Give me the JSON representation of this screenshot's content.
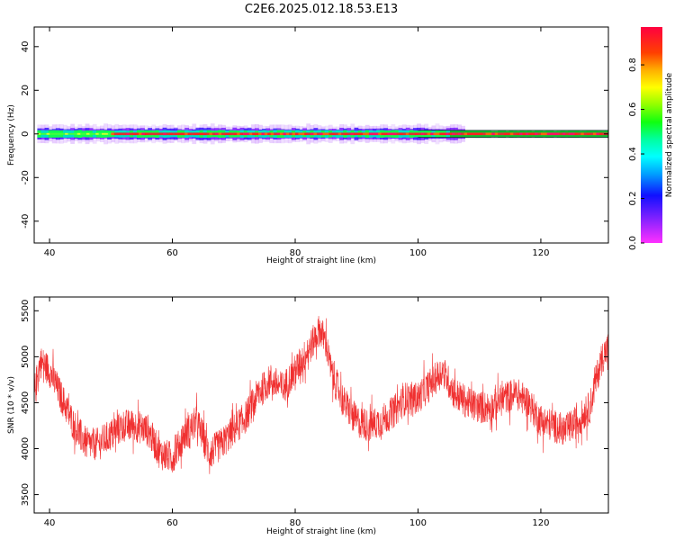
{
  "chart_data": [
    {
      "type": "heatmap",
      "title": "C2E6.2025.012.18.53.E13",
      "xlabel": "Height of straight line (km)",
      "ylabel": "Frequency (Hz)",
      "xlim": [
        37.5,
        131
      ],
      "ylim": [
        -50,
        49
      ],
      "xticks": [
        40,
        60,
        80,
        100,
        120
      ],
      "yticks": [
        -40,
        -20,
        0,
        20,
        40
      ],
      "grid": false,
      "colorbar": {
        "label": "Normalized spectral amplitude",
        "range": [
          0,
          0.97
        ],
        "ticks": [
          0.0,
          0.2,
          0.4,
          0.6,
          0.8
        ],
        "colormap": "hsv-rainbow"
      },
      "description_bands": [
        {
          "x_range": [
            38,
            107
          ],
          "freq_halfwidth": 4,
          "amplitude": 0.2
        },
        {
          "x_range": [
            38,
            131
          ],
          "freq_halfwidth": 1,
          "amplitude": 0.6
        },
        {
          "x_range": [
            50,
            131
          ],
          "freq_halfwidth": 0.6,
          "amplitude": 0.95
        }
      ]
    },
    {
      "type": "line",
      "xlabel": "Height of straight line (km)",
      "ylabel": "SNR (10 * v/v)",
      "xlim": [
        37.5,
        131
      ],
      "ylim": [
        3300,
        5650
      ],
      "xticks": [
        40,
        60,
        80,
        100,
        120
      ],
      "yticks": [
        3500,
        4000,
        4500,
        5000,
        5500
      ],
      "grid": false,
      "series": [
        {
          "color": "#f03030",
          "trend_x": [
            37.5,
            38.5,
            40,
            42,
            44,
            46,
            48,
            50,
            52,
            54,
            56,
            58,
            60,
            62,
            64,
            66,
            68,
            70,
            72,
            74,
            76,
            78,
            80,
            82,
            84,
            85,
            86,
            88,
            90,
            92,
            94,
            96,
            98,
            100,
            102,
            104,
            106,
            108,
            110,
            112,
            114,
            116,
            118,
            120,
            122,
            124,
            126,
            128,
            129,
            130,
            131
          ],
          "trend_y": [
            4600,
            4950,
            4850,
            4550,
            4250,
            4050,
            4050,
            4150,
            4250,
            4250,
            4200,
            3950,
            3900,
            4150,
            4300,
            3950,
            4050,
            4200,
            4350,
            4600,
            4750,
            4650,
            4850,
            5050,
            5300,
            5150,
            4800,
            4500,
            4300,
            4250,
            4300,
            4400,
            4550,
            4550,
            4700,
            4850,
            4600,
            4500,
            4450,
            4450,
            4550,
            4600,
            4500,
            4300,
            4250,
            4200,
            4300,
            4450,
            4750,
            5000,
            5100
          ],
          "noise_amplitude": 180
        }
      ]
    }
  ]
}
